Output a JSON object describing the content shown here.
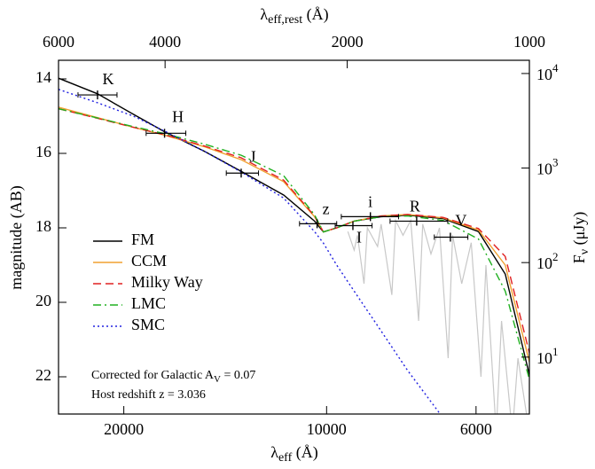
{
  "chart_data": {
    "type": "line",
    "top_label": {
      "main": "λ",
      "sub": "eff,rest",
      "rest": " (Å)"
    },
    "x_label": {
      "main": "λ",
      "sub": "eff",
      "rest": " (Å)"
    },
    "y_label": "magnitude (AB)",
    "y2_label": {
      "main": "F",
      "sub": "ν",
      "rest": " (μJy)"
    },
    "x_scale": "log",
    "y2_scale": "log",
    "xlim": [
      25000,
      5000
    ],
    "xticks": [
      20000,
      10000,
      6000
    ],
    "top_xlim": [
      6000,
      1000
    ],
    "top_xticks": [
      6000,
      4000,
      2000,
      1000
    ],
    "ylim": [
      13.5,
      23
    ],
    "yticks": [
      14,
      16,
      18,
      20,
      22
    ],
    "y2lim": [
      13800,
      2.5
    ],
    "y2ticks": [
      {
        "value": 10000,
        "label": "10",
        "sup": "4"
      },
      {
        "value": 1000,
        "label": "10",
        "sup": "3"
      },
      {
        "value": 100,
        "label": "10",
        "sup": "2"
      },
      {
        "value": 10,
        "label": "10",
        "sup": "1"
      }
    ],
    "legend": "lower left",
    "x": [
      25000,
      21880,
      19360,
      17400,
      15200,
      13390,
      11580,
      10420,
      10110,
      9660,
      9100,
      8300,
      7580,
      6720,
      5950,
      5430,
      5000
    ],
    "series": [
      {
        "name": "FM",
        "color": "#000000",
        "linestyle": "solid",
        "values": [
          13.98,
          14.4,
          14.95,
          15.42,
          15.94,
          16.48,
          17.12,
          17.82,
          18.11,
          18.0,
          17.82,
          17.7,
          17.66,
          17.75,
          18.1,
          19.24,
          21.95
        ]
      },
      {
        "name": "CCM",
        "color": "#f0a030",
        "linestyle": "solid",
        "values": [
          14.76,
          15.04,
          15.3,
          15.51,
          15.82,
          16.17,
          16.76,
          17.7,
          18.11,
          18.0,
          17.82,
          17.68,
          17.64,
          17.73,
          18.06,
          19.0,
          21.6
        ]
      },
      {
        "name": "Milky Way",
        "color": "#e02020",
        "linestyle": "dashed",
        "values": [
          14.8,
          15.06,
          15.3,
          15.5,
          15.8,
          16.12,
          16.72,
          17.68,
          18.11,
          18.0,
          17.82,
          17.68,
          17.64,
          17.72,
          18.02,
          18.77,
          21.36
        ]
      },
      {
        "name": "LMC",
        "color": "#20b020",
        "linestyle": "dashdot",
        "values": [
          14.8,
          15.05,
          15.28,
          15.47,
          15.75,
          16.05,
          16.6,
          17.65,
          18.11,
          18.0,
          17.82,
          17.7,
          17.68,
          17.8,
          18.3,
          19.7,
          22.07
        ]
      },
      {
        "name": "SMC",
        "color": "#2020e0",
        "linestyle": "dotted",
        "values": [
          14.28,
          14.64,
          15.0,
          15.4,
          15.94,
          16.5,
          17.2,
          18.1,
          18.41,
          19.0,
          19.7,
          20.77,
          21.83,
          23.1,
          null,
          null,
          null
        ]
      }
    ],
    "spectrum": {
      "color": "#c8c8c8",
      "x": [
        9300,
        9100,
        9000,
        8800,
        8700,
        8400,
        8300,
        8000,
        7900,
        7700,
        7500,
        7300,
        7200,
        7000,
        6800,
        6600,
        6500,
        6300,
        6100,
        5900,
        5800,
        5600,
        5500,
        5300,
        5200,
        5000
      ],
      "values": [
        18.1,
        18.6,
        18.2,
        19.5,
        18.0,
        18.5,
        17.9,
        19.8,
        17.8,
        18.2,
        17.8,
        20.5,
        17.9,
        18.7,
        18.0,
        21.5,
        18.2,
        19.5,
        18.4,
        22.0,
        19.0,
        23.5,
        20.5,
        23.5,
        21.5,
        23.5
      ]
    },
    "points": {
      "labels": [
        "K",
        "H",
        "J",
        "z",
        "I",
        "i",
        "R",
        "V"
      ],
      "x": [
        21880,
        17400,
        13390,
        10330,
        9140,
        8610,
        7350,
        6550
      ],
      "x_low": [
        23390,
        18530,
        14090,
        10970,
        9710,
        9510,
        8050,
        6920
      ],
      "x_high": [
        20470,
        16180,
        12620,
        9660,
        8560,
        7820,
        6610,
        6170
      ],
      "y": [
        14.43,
        15.46,
        16.53,
        17.89,
        17.94,
        17.7,
        17.82,
        18.25
      ]
    },
    "annotations": [
      {
        "text": "Corrected for Galactic A",
        "sub": "V",
        "rest": " = 0.07"
      },
      {
        "text": "Host redshift z = 3.036"
      }
    ]
  }
}
